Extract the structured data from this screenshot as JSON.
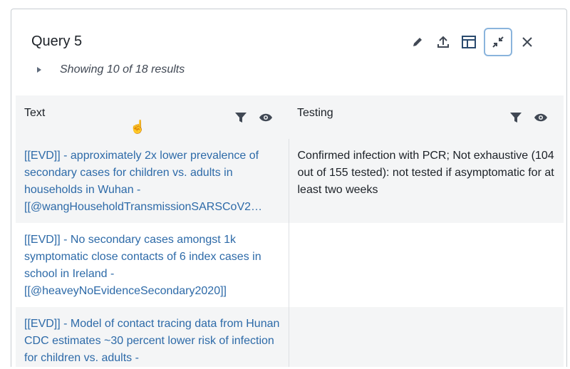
{
  "panel": {
    "title": "Query 5",
    "summary": "Showing 10 of 18 results"
  },
  "toolbar": {
    "icons": [
      "pencil-icon",
      "upload-icon",
      "layout-icon",
      "minimize-icon",
      "close-icon"
    ]
  },
  "table": {
    "columns": [
      {
        "label": "Text"
      },
      {
        "label": "Testing"
      }
    ],
    "rows": [
      {
        "text": "[[EVD]] - approximately 2x lower prevalence of secondary cases for children vs. adults in households in Wuhan - [[@wangHouseholdTransmissionSARSCoV2…",
        "testing": "Confirmed infection with PCR; Not exhaustive (104 out of 155 tested): not tested if asymptomatic for at least two weeks"
      },
      {
        "text": "[[EVD]] - No secondary cases amongst 1k symptomatic close contacts of 6 index cases in school in Ireland - [[@heaveyNoEvidenceSecondary2020]]",
        "testing": ""
      },
      {
        "text": "[[EVD]] - Model of contact tracing data from Hunan CDC estimates ~30 percent lower risk of infection for children vs. adults -",
        "testing": ""
      }
    ]
  },
  "colors": {
    "link": "#2d6aa8",
    "header_bg": "#f4f5f6",
    "active_border": "#8ab4dc"
  }
}
